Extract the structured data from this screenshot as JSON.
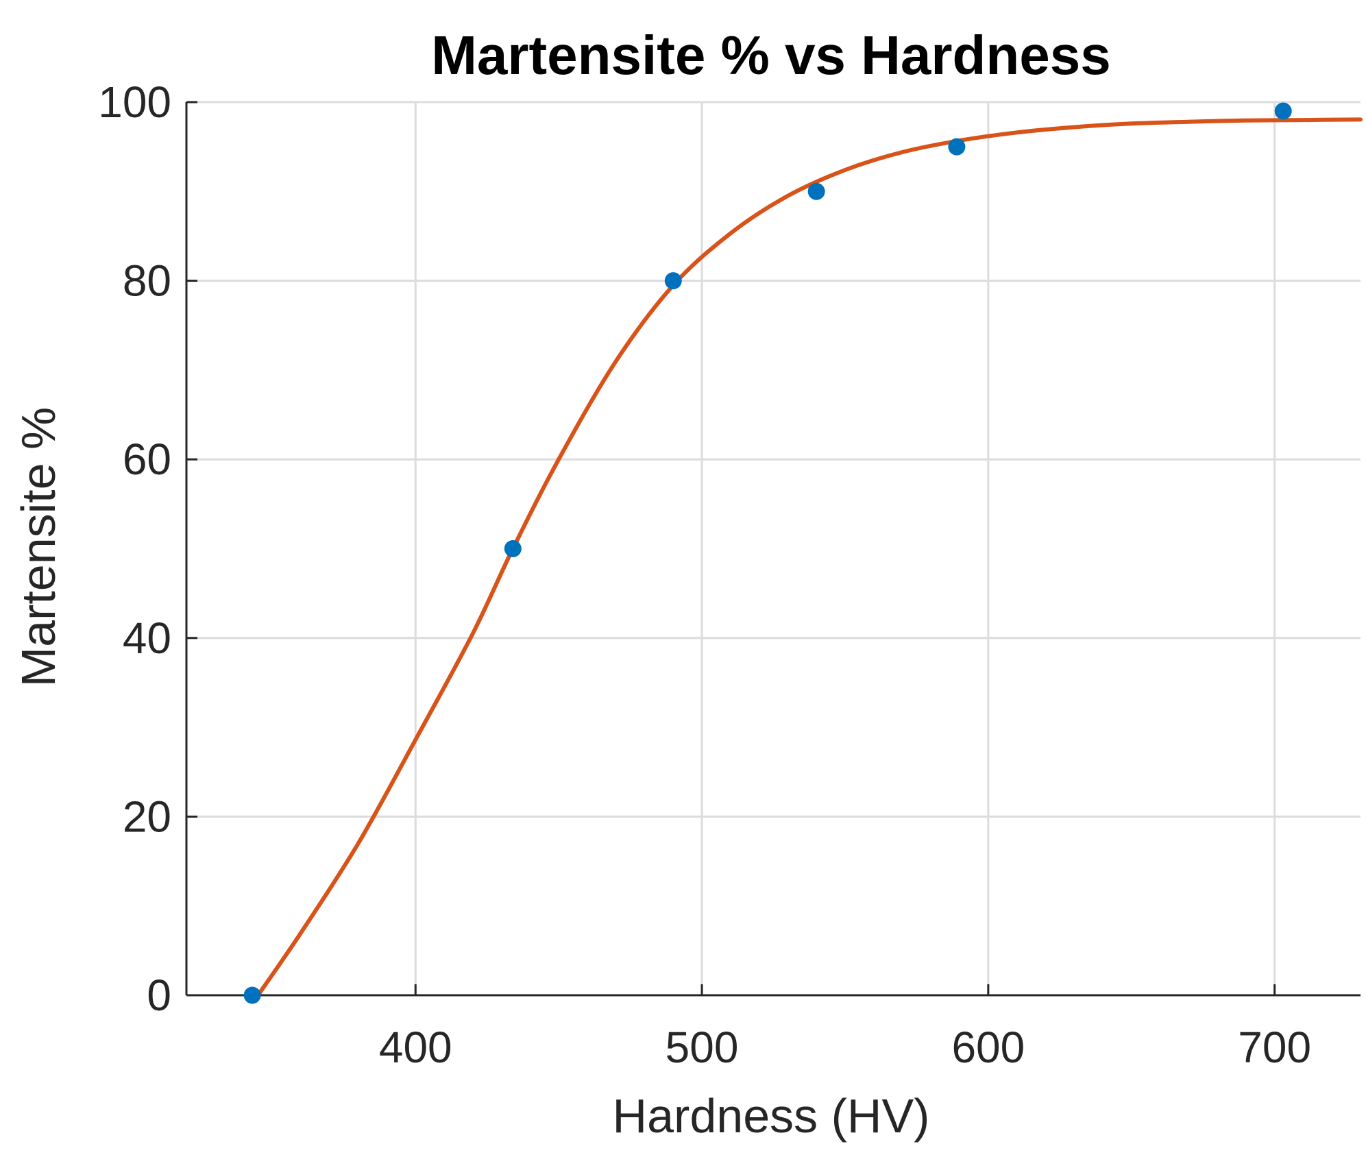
{
  "chart_data": {
    "type": "scatter",
    "title": "Martensite % vs Hardness",
    "xlabel": "Hardness (HV)",
    "ylabel": "Martensite %",
    "xlim": [
      320,
      730
    ],
    "ylim": [
      0,
      100
    ],
    "xticks": [
      400,
      500,
      600,
      700
    ],
    "yticks": [
      0,
      20,
      40,
      60,
      80,
      100
    ],
    "grid": true,
    "series": [
      {
        "type": "scatter",
        "color": "#0072BD",
        "x": [
          343,
          434,
          490,
          540,
          589,
          703
        ],
        "y": [
          0,
          50,
          80,
          90,
          95,
          99
        ]
      },
      {
        "type": "line",
        "color": "#D95319",
        "x": [
          345,
          360,
          380,
          400,
          420,
          434,
          450,
          470,
          490,
          510,
          530,
          550,
          570,
          590,
          610,
          630,
          650,
          670,
          690,
          710,
          730
        ],
        "y": [
          0,
          7,
          17,
          28.6,
          40.5,
          50,
          60,
          71,
          79.5,
          85.3,
          89.5,
          92.4,
          94.4,
          95.7,
          96.6,
          97.2,
          97.6,
          97.8,
          97.95,
          98.0,
          98.05
        ]
      }
    ]
  }
}
